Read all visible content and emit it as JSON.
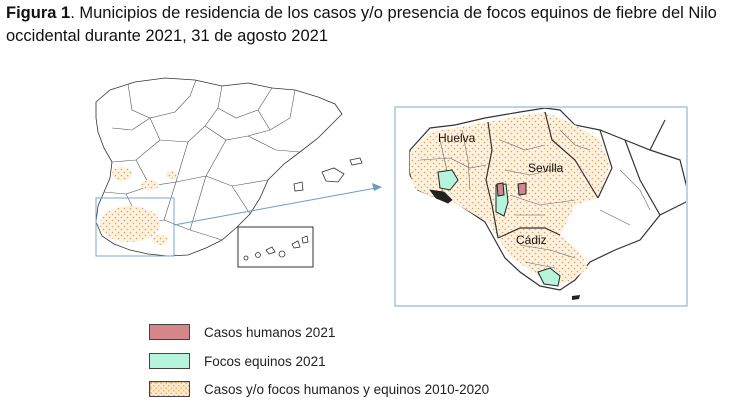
{
  "caption": {
    "figure_label": "Figura 1",
    "text": ". Municipios de residencia de los casos y/o presencia de focos equinos de fiebre del Nilo occidental durante 2021, 31 de agosto 2021"
  },
  "inset_labels": {
    "huelva": "Huelva",
    "sevilla": "Sevilla",
    "cadiz": "Cádiz"
  },
  "legend": [
    {
      "label": "Casos humanos 2021",
      "color": "#d4868a"
    },
    {
      "label": "Focos equinos 2021",
      "color": "#b6f5dc"
    },
    {
      "label": "Casos y/o focos humanos y equinos 2010-2020",
      "color": "#f6d7a8"
    }
  ],
  "colors": {
    "inset_border": "#7ba7cc",
    "arrow": "#6b9cc6",
    "dots": "#e0a35a"
  }
}
